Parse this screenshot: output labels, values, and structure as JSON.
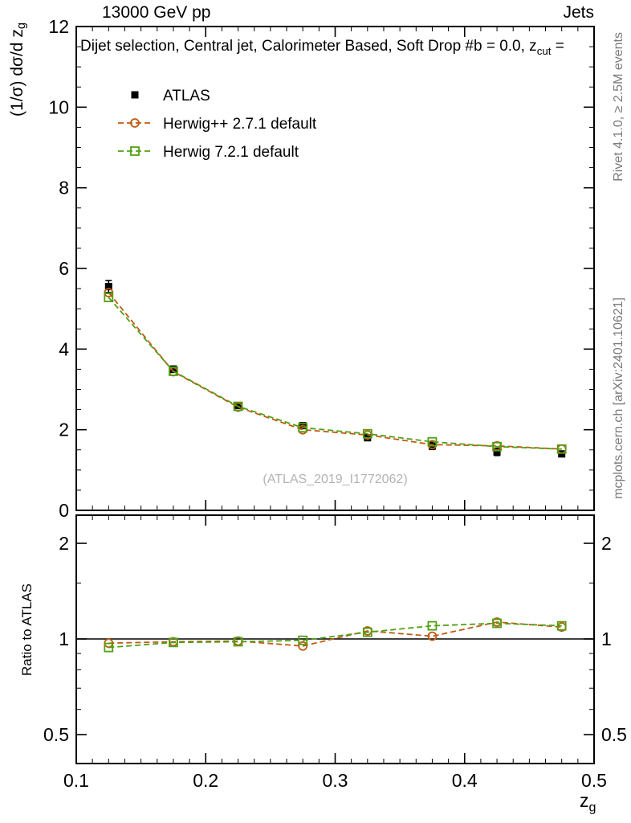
{
  "header": {
    "left": "13000 GeV pp",
    "right": "Jets"
  },
  "title": {
    "main": "Dijet selection, Central jet, Calorimeter Based, Soft Drop #b = 0.0, z",
    "sub": "cut",
    "tail": " ="
  },
  "axis_labels": {
    "y_main": {
      "main": "(1/σ) dσ/d z",
      "sub": "g"
    },
    "y_ratio": "Ratio to ATLAS",
    "x": {
      "main": "z",
      "sub": "g"
    }
  },
  "side_notes": {
    "top": "Rivet 4.1.0, ≥ 2.5M events",
    "bottom": "mcplots.cern.ch [arXiv:2401.10621]"
  },
  "watermark": "(ATLAS_2019_I1772062)",
  "chart_data": {
    "type": "line",
    "title": "Soft Drop z_g, dijet selection, central jet, calorimeter based",
    "xlabel": "z_g",
    "ylabel": "(1/sigma) dsigma/d z_g",
    "x_range": [
      0.1,
      0.5
    ],
    "y_main_range": [
      0,
      12
    ],
    "y_main_ticks": [
      0,
      2,
      4,
      6,
      8,
      10,
      12
    ],
    "x_ticks": [
      0.1,
      0.2,
      0.3,
      0.4,
      0.5
    ],
    "ratio_scale": "log",
    "ratio_range": [
      0.4,
      2.45
    ],
    "ratio_ticks": [
      0.5,
      1,
      2
    ],
    "ratio_minor_ticks": [
      0.6,
      0.7,
      0.8,
      0.9,
      1.5
    ],
    "grid": false,
    "legend_position": "top-left",
    "x": [
      0.125,
      0.175,
      0.225,
      0.275,
      0.325,
      0.375,
      0.425,
      0.475
    ],
    "series": [
      {
        "name": "ATLAS",
        "color": "#000000",
        "marker": "filled-square",
        "line": "none",
        "values": [
          5.55,
          3.5,
          2.6,
          2.1,
          1.8,
          1.6,
          1.45,
          1.4
        ],
        "yerr": [
          0.15,
          0.08,
          0.06,
          0.06,
          0.06,
          0.09,
          0.09,
          0.07
        ],
        "ratio": null
      },
      {
        "name": "Herwig++ 2.7.1 default",
        "color": "#c05a12",
        "marker": "open-circle",
        "line": "dashed",
        "values": [
          5.4,
          3.44,
          2.56,
          2.0,
          1.87,
          1.63,
          1.6,
          1.52
        ],
        "ratio": [
          0.97,
          0.98,
          0.985,
          0.95,
          1.06,
          1.02,
          1.13,
          1.09
        ]
      },
      {
        "name": "Herwig 7.2.1 default",
        "color": "#50a014",
        "marker": "open-square",
        "line": "dashed",
        "values": [
          5.28,
          3.45,
          2.58,
          2.05,
          1.9,
          1.7,
          1.58,
          1.52
        ],
        "ratio": [
          0.94,
          0.975,
          0.98,
          0.99,
          1.05,
          1.1,
          1.12,
          1.1
        ]
      }
    ]
  }
}
